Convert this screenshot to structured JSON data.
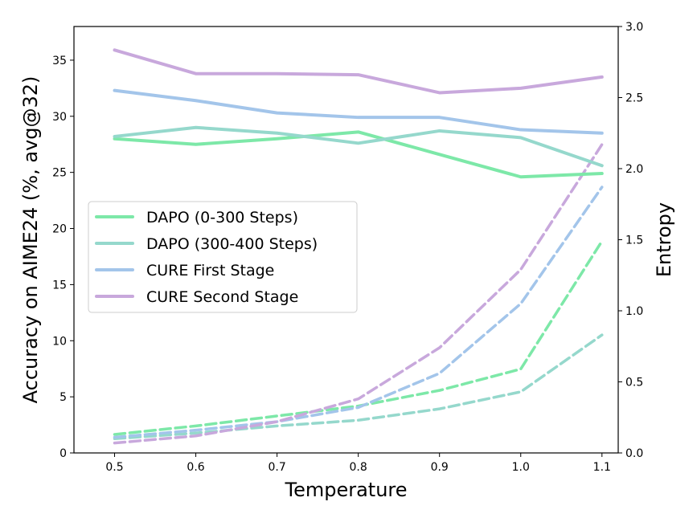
{
  "chart_data": {
    "type": "line",
    "xlabel": "Temperature",
    "ylabel_left": "Accuracy on AIME24 (%, avg@32)",
    "ylabel_right": "Entropy",
    "x": [
      0.5,
      0.6,
      0.7,
      0.8,
      0.9,
      1.0,
      1.1
    ],
    "xlim": [
      0.45,
      1.12
    ],
    "ylim_left": [
      0,
      38
    ],
    "ylim_right": [
      0,
      3.0
    ],
    "xticks": [
      "0.5",
      "0.6",
      "0.7",
      "0.8",
      "0.9",
      "1.0",
      "1.1"
    ],
    "yticks_left": [
      "0",
      "5",
      "10",
      "15",
      "20",
      "25",
      "30",
      "35"
    ],
    "yticks_right": [
      "0.0",
      "0.5",
      "1.0",
      "1.5",
      "2.0",
      "2.5",
      "3.0"
    ],
    "legend_position": "center-left",
    "series": [
      {
        "name": "DAPO (0-300 Steps)",
        "color": "#7de8a8",
        "accuracy": [
          28.0,
          27.5,
          28.0,
          28.6,
          26.6,
          24.6,
          24.9
        ],
        "entropy": [
          0.13,
          0.19,
          0.26,
          0.33,
          0.44,
          0.59,
          1.49
        ]
      },
      {
        "name": "DAPO (300-400 Steps)",
        "color": "#95d8cc",
        "accuracy": [
          28.2,
          29.0,
          28.5,
          27.6,
          28.7,
          28.1,
          25.6
        ],
        "entropy": [
          0.1,
          0.14,
          0.19,
          0.23,
          0.31,
          0.43,
          0.83
        ]
      },
      {
        "name": "CURE First Stage",
        "color": "#a3c5ea",
        "accuracy": [
          32.3,
          31.4,
          30.3,
          29.9,
          29.9,
          28.8,
          28.5
        ],
        "entropy": [
          0.11,
          0.16,
          0.22,
          0.32,
          0.56,
          1.05,
          1.87
        ]
      },
      {
        "name": "CURE Second Stage",
        "color": "#c8a8dc",
        "accuracy": [
          35.9,
          33.8,
          33.8,
          33.7,
          32.1,
          32.5,
          33.5
        ],
        "entropy": [
          0.07,
          0.12,
          0.22,
          0.38,
          0.74,
          1.29,
          2.17
        ]
      }
    ]
  }
}
